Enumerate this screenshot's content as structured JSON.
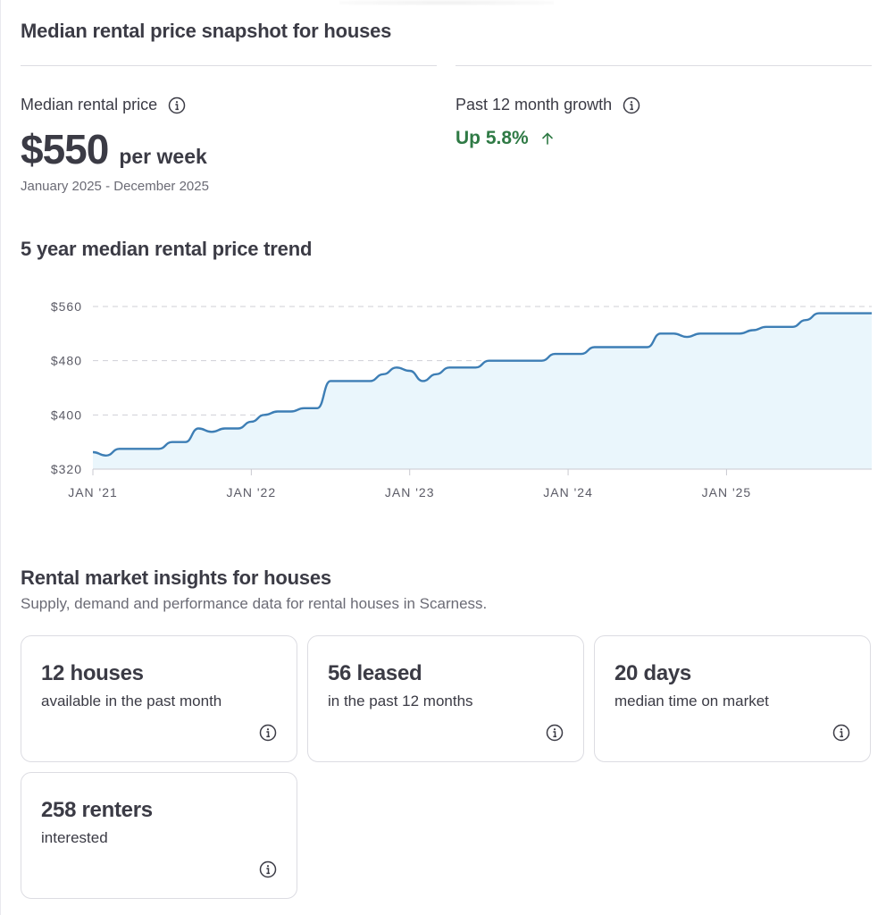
{
  "snapshot": {
    "title": "Median rental price snapshot for houses",
    "median_label": "Median rental price",
    "price_value": "$550",
    "price_unit": "per week",
    "date_range": "January 2025 - December 2025",
    "growth_label": "Past 12 month growth",
    "growth_value": "Up 5.8%",
    "growth_color": "#2f7a45"
  },
  "trend": {
    "title": "5 year median rental price trend"
  },
  "chart_data": {
    "type": "area",
    "line_color": "#3d7eb5",
    "fill_color": "#eaf6fc",
    "ylim": [
      320,
      560
    ],
    "yticks": [
      "$560",
      "$480",
      "$400",
      "$320"
    ],
    "ytick_values": [
      560,
      480,
      400,
      320
    ],
    "xticks": [
      "JAN '21",
      "JAN '22",
      "JAN '23",
      "JAN '24",
      "JAN '25"
    ],
    "xtick_values": [
      "2021-01",
      "2022-01",
      "2023-01",
      "2024-01",
      "2025-01"
    ],
    "grid": true,
    "x": [
      "2021-01",
      "2021-02",
      "2021-03",
      "2021-04",
      "2021-05",
      "2021-06",
      "2021-07",
      "2021-08",
      "2021-09",
      "2021-10",
      "2021-11",
      "2021-12",
      "2022-01",
      "2022-02",
      "2022-03",
      "2022-04",
      "2022-05",
      "2022-06",
      "2022-07",
      "2022-08",
      "2022-09",
      "2022-10",
      "2022-11",
      "2022-12",
      "2023-01",
      "2023-02",
      "2023-03",
      "2023-04",
      "2023-05",
      "2023-06",
      "2023-07",
      "2023-08",
      "2023-09",
      "2023-10",
      "2023-11",
      "2023-12",
      "2024-01",
      "2024-02",
      "2024-03",
      "2024-04",
      "2024-05",
      "2024-06",
      "2024-07",
      "2024-08",
      "2024-09",
      "2024-10",
      "2024-11",
      "2024-12",
      "2025-01",
      "2025-02",
      "2025-03",
      "2025-04",
      "2025-05",
      "2025-06",
      "2025-07",
      "2025-08",
      "2025-09",
      "2025-10",
      "2025-11",
      "2025-12"
    ],
    "values": [
      345,
      340,
      350,
      350,
      350,
      350,
      360,
      360,
      380,
      375,
      380,
      380,
      390,
      400,
      405,
      405,
      410,
      410,
      450,
      450,
      450,
      450,
      460,
      470,
      465,
      450,
      460,
      470,
      470,
      470,
      480,
      480,
      480,
      480,
      480,
      490,
      490,
      490,
      500,
      500,
      500,
      500,
      500,
      520,
      520,
      515,
      520,
      520,
      520,
      520,
      525,
      530,
      530,
      530,
      540,
      550,
      550,
      550,
      550,
      550
    ]
  },
  "insights": {
    "title": "Rental market insights for houses",
    "subtitle": "Supply, demand and performance data for rental houses in Scarness.",
    "cards": [
      {
        "value": "12 houses",
        "desc": "available in the past month"
      },
      {
        "value": "56 leased",
        "desc": "in the past 12 months"
      },
      {
        "value": "20 days",
        "desc": "median time on market"
      },
      {
        "value": "258 renters",
        "desc": "interested"
      }
    ]
  },
  "icons": {
    "info": "info-circle-icon",
    "growth_arrow": "arrow-up-icon"
  }
}
